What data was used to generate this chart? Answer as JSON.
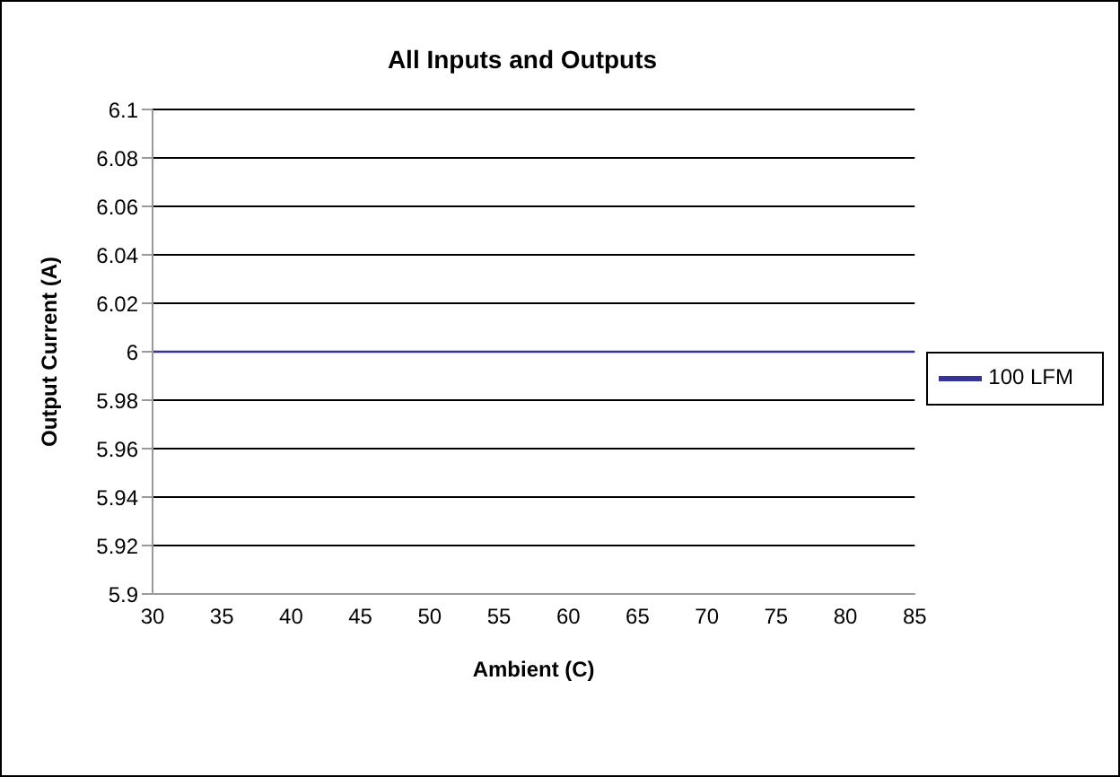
{
  "chart_data": {
    "type": "line",
    "title": "All Inputs and Outputs",
    "xlabel": "Ambient (C)",
    "ylabel": "Output Current (A)",
    "x": [
      30,
      85
    ],
    "series": [
      {
        "name": "100 LFM",
        "color": "#333399",
        "values": [
          6,
          6
        ]
      }
    ],
    "xlim": [
      30,
      85
    ],
    "xticks": [
      30,
      35,
      40,
      45,
      50,
      55,
      60,
      65,
      70,
      75,
      80,
      85
    ],
    "ylim": [
      5.9,
      6.1
    ],
    "yticks": [
      5.9,
      5.92,
      5.94,
      5.96,
      5.98,
      6,
      6.02,
      6.04,
      6.06,
      6.08,
      6.1
    ],
    "grid": "y",
    "legend": "right",
    "marker": "none",
    "line_style": "solid"
  }
}
